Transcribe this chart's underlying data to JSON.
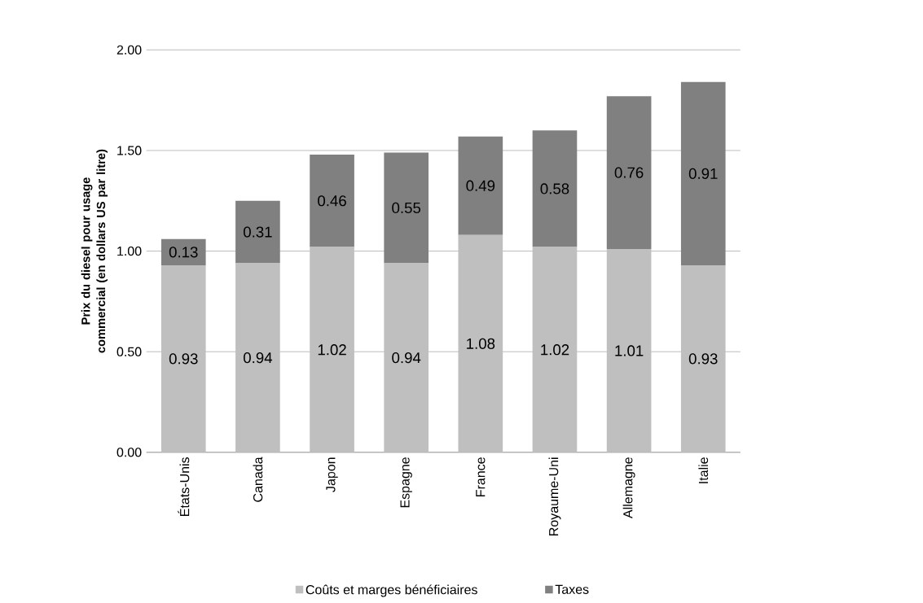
{
  "chart_data": {
    "type": "bar",
    "stacked": true,
    "ylabel": "Prix du diesel pour usage commercial (en dollars US par litre)",
    "categories": [
      "États-Unis",
      "Canada",
      "Japon",
      "Espagne",
      "France",
      "Royaume-Uni",
      "Allemagne",
      "Italie"
    ],
    "series": [
      {
        "name": "Coûts et marges bénéficiaires",
        "color": "#bfbfbf",
        "values": [
          0.93,
          0.94,
          1.02,
          0.94,
          1.08,
          1.02,
          1.01,
          0.93
        ]
      },
      {
        "name": "Taxes",
        "color": "#808080",
        "values": [
          0.13,
          0.31,
          0.46,
          0.55,
          0.49,
          0.58,
          0.76,
          0.91
        ]
      }
    ],
    "ylim": [
      0,
      2
    ],
    "yticks": [
      {
        "value": 0,
        "label": "0.00"
      },
      {
        "value": 0.5,
        "label": "0.50"
      },
      {
        "value": 1,
        "label": "1.00"
      },
      {
        "value": 1.5,
        "label": "1.50"
      },
      {
        "value": 2,
        "label": "2.00"
      }
    ],
    "grid": "y",
    "legend": "bottom",
    "data_labels": true
  }
}
